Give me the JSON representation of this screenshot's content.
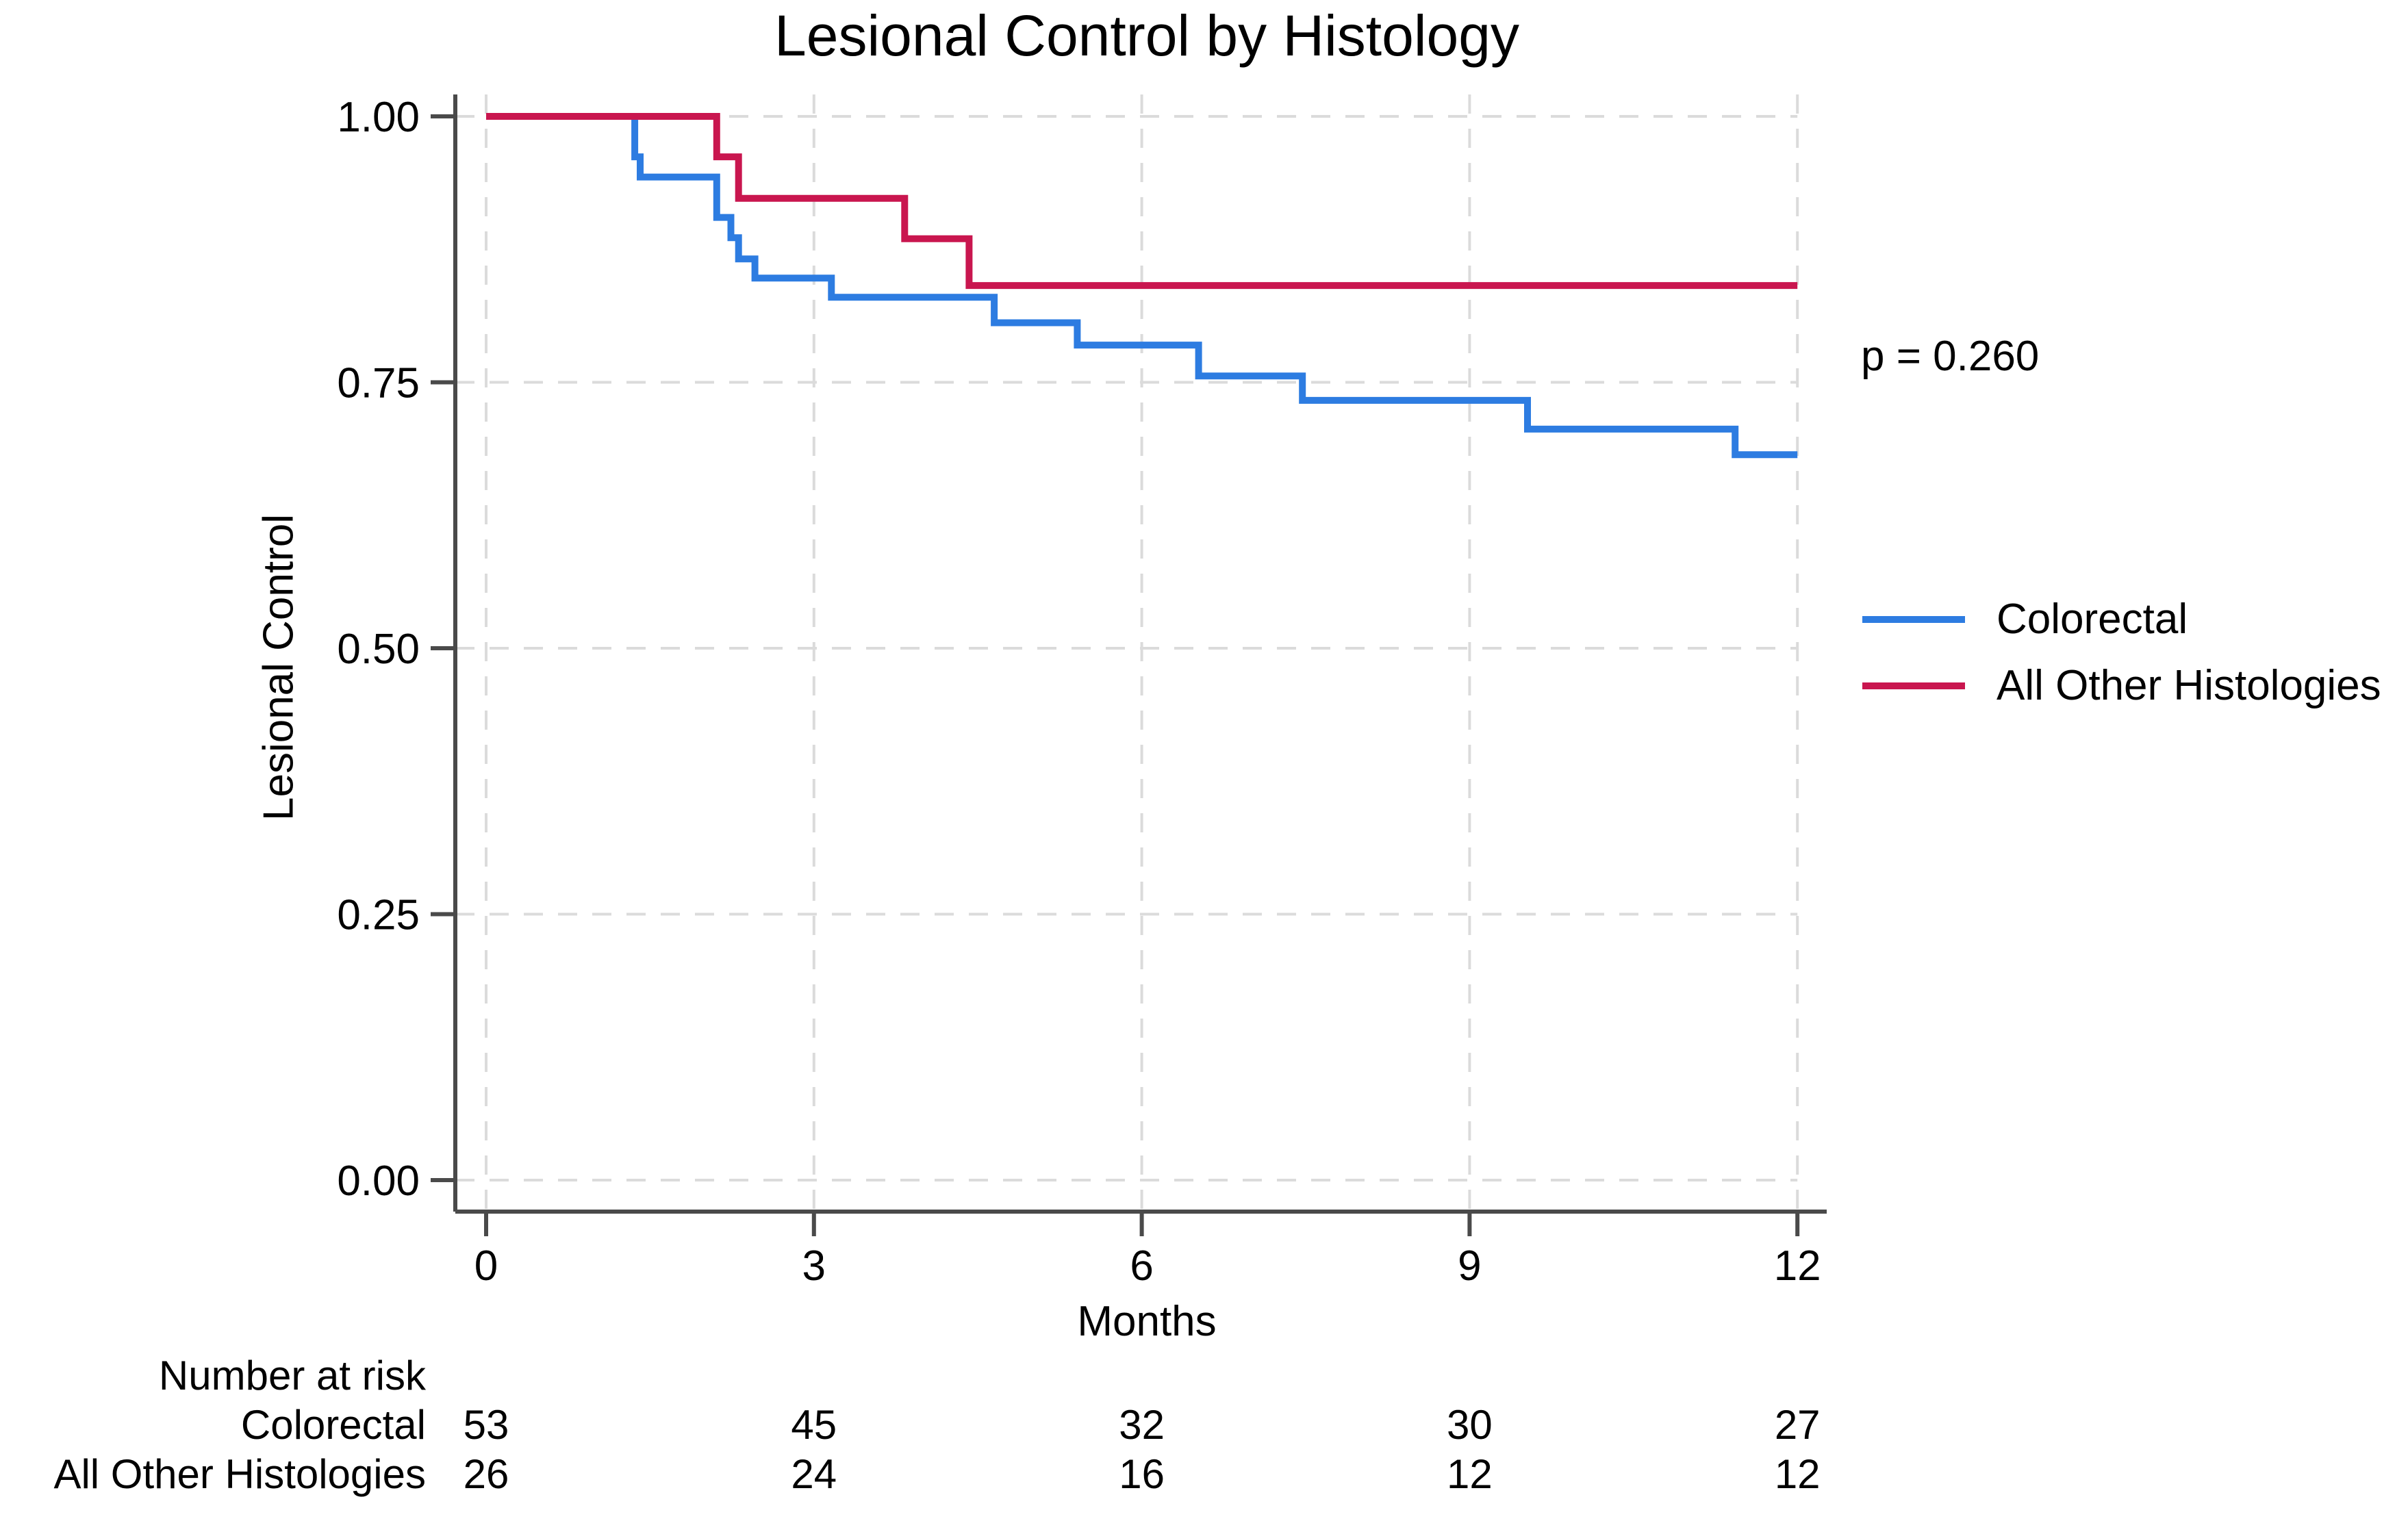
{
  "chart_data": {
    "type": "line",
    "subtype": "kaplan-meier-step",
    "title": "Lesional Control by Histology",
    "xlabel": "Months",
    "ylabel": "Lesional Control",
    "xlim": [
      0,
      12
    ],
    "ylim": [
      0.0,
      1.0
    ],
    "x_tick_labels": [
      "0",
      "3",
      "6",
      "9",
      "12"
    ],
    "x_tick_values": [
      0,
      3,
      6,
      9,
      12
    ],
    "y_tick_labels": [
      "1.00",
      "0.75",
      "0.50",
      "0.25",
      "0.00"
    ],
    "y_tick_values": [
      1.0,
      0.75,
      0.5,
      0.25,
      0.0
    ],
    "grid": "dashed, light gray, at all x and y ticks",
    "legend_position": "right",
    "annotation": "p = 0.260",
    "series": [
      {
        "name": "Colorectal",
        "color": "#2D7CE1",
        "start": [
          0,
          1.0
        ],
        "end_time": 12,
        "steps": [
          [
            1.36,
            0.962
          ],
          [
            1.41,
            0.943
          ],
          [
            2.11,
            0.905
          ],
          [
            2.24,
            0.886
          ],
          [
            2.31,
            0.866
          ],
          [
            2.46,
            0.848
          ],
          [
            3.16,
            0.83
          ],
          [
            4.65,
            0.806
          ],
          [
            5.41,
            0.785
          ],
          [
            6.52,
            0.756
          ],
          [
            7.47,
            0.733
          ],
          [
            9.53,
            0.706
          ],
          [
            11.43,
            0.682
          ]
        ]
      },
      {
        "name": "All Other Histologies",
        "color": "#C9164F",
        "start": [
          0,
          1.0
        ],
        "end_time": 12,
        "steps": [
          [
            2.11,
            0.962
          ],
          [
            2.31,
            0.923
          ],
          [
            3.83,
            0.885
          ],
          [
            4.42,
            0.841
          ]
        ]
      }
    ],
    "risk_table": {
      "header": "Number at risk",
      "time_points": [
        0,
        3,
        6,
        9,
        12
      ],
      "rows": [
        {
          "label": "Colorectal",
          "counts": [
            "53",
            "45",
            "32",
            "30",
            "27"
          ]
        },
        {
          "label": "All Other Histologies",
          "counts": [
            "26",
            "24",
            "16",
            "12",
            "12"
          ]
        }
      ]
    },
    "colors": {
      "colorectal_line": "#2D7CE1",
      "all_other_line": "#C9164F",
      "grid_line": "#DBDBDB",
      "axis_line": "#4A4A4A",
      "text": "#000000"
    }
  }
}
